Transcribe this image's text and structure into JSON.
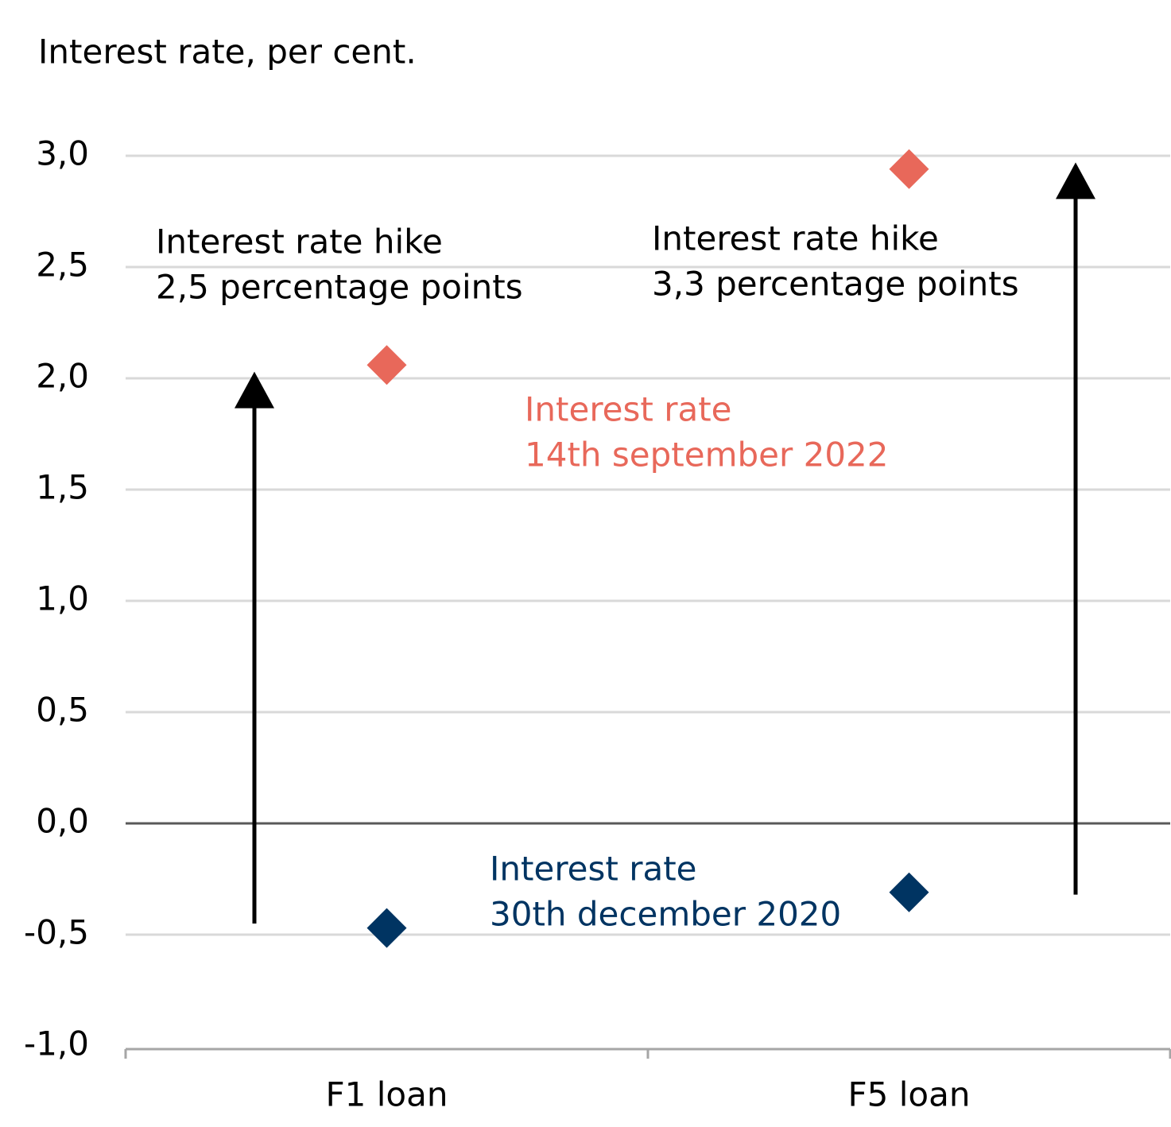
{
  "chart_data": {
    "type": "dot",
    "y_axis_label": "Interest rate, per cent.",
    "categories": [
      "F1 loan",
      "F5 loan"
    ],
    "series": [
      {
        "name": [
          "Interest rate",
          "14th september 2022"
        ],
        "color": "#e8685a",
        "values": [
          2.06,
          2.94
        ]
      },
      {
        "name": [
          "Interest rate",
          "30th december 2020"
        ],
        "color": "#003462",
        "values": [
          -0.47,
          -0.31
        ]
      }
    ],
    "annotations": [
      {
        "lines": [
          "Interest rate hike",
          "2,5 percentage points"
        ],
        "from": -0.45,
        "to": 2.03
      },
      {
        "lines": [
          "Interest rate hike",
          "3,3 percentage points"
        ],
        "from": -0.32,
        "to": 2.97
      }
    ],
    "ylim": [
      -1,
      3
    ],
    "yticks": [
      {
        "value": -1,
        "label": "-1,0"
      },
      {
        "value": -0.5,
        "label": "-0,5"
      },
      {
        "value": 0,
        "label": "0,0"
      },
      {
        "value": 0.5,
        "label": "0,5"
      },
      {
        "value": 1,
        "label": "1,0"
      },
      {
        "value": 1.5,
        "label": "1,5"
      },
      {
        "value": 2,
        "label": "2,0"
      },
      {
        "value": 2.5,
        "label": "2,5"
      },
      {
        "value": 3,
        "label": "3,0"
      }
    ],
    "grid": true
  }
}
